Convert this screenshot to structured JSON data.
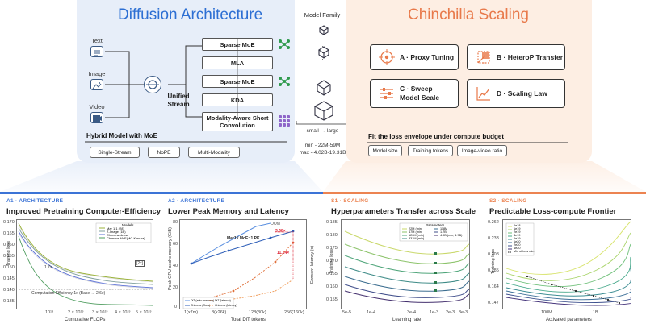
{
  "diffusion": {
    "title": "Diffusion Architecture",
    "modalities": [
      "Text",
      "Image",
      "Video"
    ],
    "unified_stream": "Unified Stream",
    "blocks": [
      "Sparse MoE",
      "MLA",
      "Sparse MoE",
      "KDA",
      "Modality-Aware Short Convolution"
    ],
    "hybrid_label": "Hybrid Model with MoE",
    "tags": [
      "Single-Stream",
      "NoPE",
      "Multi-Modality"
    ]
  },
  "model_family": {
    "title": "Model Family",
    "dots": "·",
    "size_range": "small → large",
    "min": "min - 22M-59M",
    "max": "max - 4.02B-19.31B"
  },
  "chinchilla": {
    "title": "Chinchilla Scaling",
    "boxes": [
      {
        "label": "A · Proxy Tuning",
        "icon": "target-icon"
      },
      {
        "label": "B · HeteroP Transfer",
        "icon": "transfer-icon"
      },
      {
        "label": "C · Sweep Model Scale",
        "icon": "sliders-icon"
      },
      {
        "label": "D · Scaling Law",
        "icon": "trend-chart-icon"
      }
    ],
    "fit_label": "Fit the loss envelope under compute budget",
    "tags": [
      "Model size",
      "Training tokens",
      "Image-video ratio"
    ]
  },
  "colors": {
    "blue": "#3b73d6",
    "orange": "#ec8351",
    "green": "#2f9a4d",
    "purple": "#8e66c9"
  },
  "sections": [
    {
      "label": "A1 · ARCHITECTURE",
      "title": "Improved Pretraining Computer-Efficiency",
      "xlabel": "Cumulative FLOPs",
      "ylabel": "Training loss",
      "xticks": [
        "10¹⁹",
        "2 × 10¹⁹",
        "3 × 10¹⁹",
        "4 × 10¹⁹",
        "5 × 10¹⁹"
      ],
      "yticks": [
        "0.170",
        "0.165",
        "0.160",
        "0.155",
        "0.150",
        "0.145",
        "0.140",
        "0.135"
      ],
      "legend_title": "Models",
      "legend": [
        "Mar 1.1 (28)",
        "Z-Image (1B)",
        "Chimera-dense",
        "Chimera-MoE(MC-Kimura)"
      ],
      "annotations": [
        "Computation Efficiency 1x (Base → 2.6e)",
        "[2x]",
        "1.7x"
      ]
    },
    {
      "label": "A2 · ARCHITECTURE",
      "title": "Lower Peak Memory and Latency",
      "xlabel": "Total DiT tokens",
      "ylabel": "Peak GPU cache memory (GiB)",
      "ylabel2": "Forward latency (s)",
      "xticks": [
        "1(x7m)",
        "8(x26k)",
        "128(80k)",
        "256(160k)"
      ],
      "yticks": [
        "80",
        "60",
        "40",
        "20",
        "0"
      ],
      "annotations": [
        "OOM",
        "3.68×",
        "11.14×",
        "Mar1 / MoE: 1 PK"
      ],
      "legend": [
        "DiT (auto memory)",
        "Chimera (Ours)",
        "DiT (latency)",
        "Chimera (latency)"
      ]
    },
    {
      "label": "S1 · SCALING",
      "title": "Hyperparameters Transfer across Scale",
      "xlabel": "Learning rate",
      "ylabel": "Training loss",
      "xticks": [
        "5e-5",
        "1e-4",
        "3e-4",
        "1e-3",
        "2e-3",
        "3e-3"
      ],
      "yticks": [
        "0.185",
        "0.180",
        "0.175",
        "0.170",
        "0.165",
        "0.160",
        "0.155"
      ],
      "legend_title": "Parameters",
      "legend": [
        "22M (min)",
        "47M (min)",
        "120M (min)",
        "331M (min)",
        "118M",
        "1.7B",
        "4.0B (min, 1.7B)"
      ]
    },
    {
      "label": "S2 · SCALING",
      "title": "Predictable Loss-compute Frontier",
      "xlabel": "Activated parameters",
      "ylabel": "Training loss",
      "xticks": [
        "100M",
        "1B"
      ],
      "yticks": [
        "0.262",
        "0.233",
        "0.208",
        "0.185",
        "0.164",
        "0.147"
      ],
      "legend": [
        "6e18",
        "1e19",
        "2e19",
        "4e19",
        "6e19",
        "1e20",
        "2e20",
        "4e20",
        "Min of loss min"
      ]
    }
  ]
}
